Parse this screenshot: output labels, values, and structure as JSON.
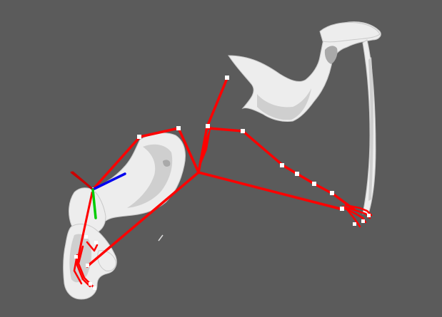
{
  "viewer": {
    "background_color": "#5b5b5b",
    "mesh_color": "#ededed",
    "skeleton_color": "#ff0000",
    "joint_color": "#ffffff",
    "axis_x_color": "#cc0000",
    "axis_y_color": "#00cc00",
    "axis_z_color": "#0000ee"
  }
}
